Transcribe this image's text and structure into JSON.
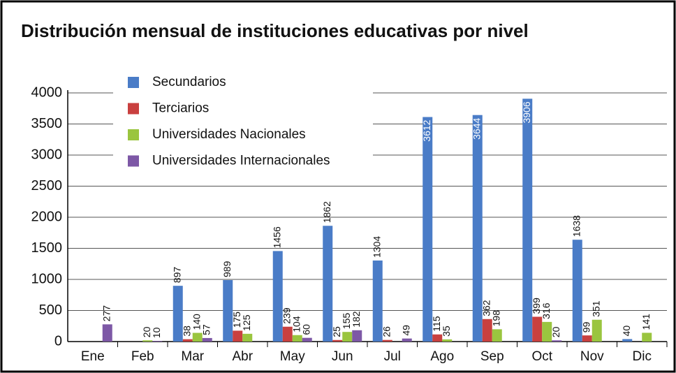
{
  "chart_data": {
    "type": "bar",
    "title": "Distribución mensual de instituciones educativas por nivel",
    "categories": [
      "Ene",
      "Feb",
      "Mar",
      "Abr",
      "May",
      "Jun",
      "Jul",
      "Ago",
      "Sep",
      "Oct",
      "Nov",
      "Dic"
    ],
    "series": [
      {
        "name": "Secundarios",
        "color": "#4a7cc7",
        "values": [
          null,
          null,
          897,
          989,
          1456,
          1862,
          1304,
          3612,
          3644,
          3906,
          1638,
          40
        ]
      },
      {
        "name": "Terciarios",
        "color": "#c9403f",
        "values": [
          null,
          null,
          38,
          175,
          239,
          25,
          26,
          115,
          362,
          399,
          99,
          null
        ]
      },
      {
        "name": "Universidades Nacionales",
        "color": "#9ac53f",
        "values": [
          null,
          20,
          140,
          125,
          104,
          155,
          null,
          35,
          198,
          316,
          351,
          141
        ]
      },
      {
        "name": "Universidades Internacionales",
        "color": "#7d58a6",
        "values": [
          277,
          10,
          57,
          null,
          60,
          182,
          49,
          null,
          null,
          20,
          null,
          null
        ]
      }
    ],
    "ylim": [
      0,
      4000
    ],
    "yticks": [
      0,
      500,
      1000,
      1500,
      2000,
      2500,
      3000,
      3500,
      4000
    ],
    "grid": true,
    "legend": "upper left"
  }
}
